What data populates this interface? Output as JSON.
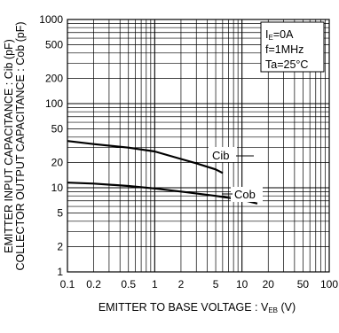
{
  "chart_data": {
    "type": "line",
    "x_scale": "log",
    "y_scale": "log",
    "xlim": [
      0.1,
      100
    ],
    "ylim": [
      1,
      1000
    ],
    "grid": true,
    "x_ticks": [
      {
        "v": 0.1,
        "label": "0.1"
      },
      {
        "v": 0.2,
        "label": "0.2"
      },
      {
        "v": 0.5,
        "label": "0.5"
      },
      {
        "v": 1,
        "label": "1"
      },
      {
        "v": 2,
        "label": "2"
      },
      {
        "v": 5,
        "label": "5"
      },
      {
        "v": 10,
        "label": "10"
      },
      {
        "v": 20,
        "label": "20"
      },
      {
        "v": 50,
        "label": "50"
      },
      {
        "v": 100,
        "label": "100"
      }
    ],
    "y_ticks": [
      {
        "v": 1,
        "label": "1"
      },
      {
        "v": 2,
        "label": "2"
      },
      {
        "v": 5,
        "label": "5"
      },
      {
        "v": 10,
        "label": "10"
      },
      {
        "v": 20,
        "label": "20"
      },
      {
        "v": 50,
        "label": "50"
      },
      {
        "v": 100,
        "label": "100"
      },
      {
        "v": 200,
        "label": "200"
      },
      {
        "v": 500,
        "label": "500"
      },
      {
        "v": 1000,
        "label": "1000"
      }
    ],
    "xlabel_main": "EMITTER TO BASE VOLTAGE : V",
    "xlabel_sub": "EB",
    "xlabel_unit": " (V)",
    "ylabel_line1": "EMITTER INPUT CAPACITANCE : Cib (pF)",
    "ylabel_line2": "COLLECTOR OUTPUT CAPACITANCE : Cob (pF)",
    "conditions": {
      "line1_main": "I",
      "line1_sub": "E",
      "line1_rest": "=0A",
      "line2": "f=1MHz",
      "line3": "Ta=25°C"
    },
    "series": [
      {
        "name": "Cib",
        "x": [
          0.1,
          0.2,
          0.5,
          1,
          2,
          3,
          5,
          6
        ],
        "y": [
          36,
          33,
          30,
          27,
          22,
          19.5,
          16.5,
          15
        ]
      },
      {
        "name": "Cob",
        "x": [
          0.1,
          0.2,
          0.5,
          1,
          2,
          5,
          10,
          15
        ],
        "y": [
          11.5,
          11.2,
          10.5,
          9.8,
          9,
          8,
          7.2,
          6.5
        ]
      }
    ]
  }
}
